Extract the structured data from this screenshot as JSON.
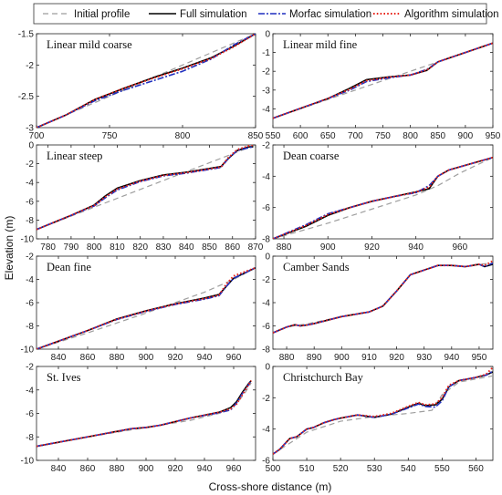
{
  "xlabel": "Cross-shore distance (m)",
  "ylabel": "Elevation (m)",
  "legend": [
    {
      "name": "Initial profile",
      "color": "#9e9e9e",
      "dash": "6,4",
      "width": 1.2
    },
    {
      "name": "Full simulation",
      "color": "#000000",
      "dash": "",
      "width": 1.6
    },
    {
      "name": "Morfac simulation",
      "color": "#1f2fbf",
      "dash": "7,2,2,2",
      "width": 1.6
    },
    {
      "name": "Algorithm simulation",
      "color": "#e8231a",
      "dash": "1.6,2.2",
      "width": 1.9
    }
  ],
  "chart_data": [
    {
      "title": "Linear mild coarse",
      "type": "line",
      "xlim": [
        700,
        850
      ],
      "ylim": [
        -3,
        -1.5
      ],
      "xticks": [
        "700",
        "750",
        "800",
        "850"
      ],
      "yticks": [
        "-3",
        "-2.5",
        "-2",
        "-1.5"
      ],
      "initial": {
        "x": [
          700,
          850
        ],
        "y": [
          -3,
          -1.5
        ]
      },
      "series": [
        {
          "x": [
            700,
            720,
            740,
            760,
            780,
            800,
            820,
            835,
            850
          ],
          "y": [
            -3.0,
            -2.8,
            -2.55,
            -2.37,
            -2.2,
            -2.05,
            -1.88,
            -1.7,
            -1.5
          ]
        },
        {
          "x": [
            700,
            720,
            740,
            760,
            780,
            800,
            820,
            835,
            850
          ],
          "y": [
            -3.0,
            -2.8,
            -2.57,
            -2.4,
            -2.25,
            -2.1,
            -1.9,
            -1.68,
            -1.5
          ]
        },
        {
          "x": [
            700,
            720,
            740,
            760,
            780,
            800,
            820,
            835,
            850
          ],
          "y": [
            -3.0,
            -2.8,
            -2.55,
            -2.37,
            -2.21,
            -2.06,
            -1.89,
            -1.71,
            -1.5
          ]
        }
      ]
    },
    {
      "title": "Linear mild fine",
      "type": "line",
      "xlim": [
        550,
        950
      ],
      "ylim": [
        -5,
        0
      ],
      "xticks": [
        "550",
        "600",
        "650",
        "700",
        "750",
        "800",
        "850",
        "900",
        "950"
      ],
      "yticks": [
        "-4",
        "-3",
        "-2",
        "-1",
        "0"
      ],
      "initial": {
        "x": [
          550,
          950
        ],
        "y": [
          -4.5,
          -0.5
        ]
      },
      "series": [
        {
          "x": [
            550,
            650,
            690,
            720,
            760,
            800,
            830,
            850,
            900,
            950
          ],
          "y": [
            -4.5,
            -3.45,
            -2.9,
            -2.45,
            -2.3,
            -2.2,
            -1.95,
            -1.5,
            -1.0,
            -0.5
          ]
        },
        {
          "x": [
            550,
            650,
            690,
            720,
            760,
            800,
            830,
            850,
            900,
            950
          ],
          "y": [
            -4.5,
            -3.45,
            -3.0,
            -2.55,
            -2.35,
            -2.2,
            -1.9,
            -1.5,
            -1.0,
            -0.5
          ]
        },
        {
          "x": [
            550,
            650,
            690,
            720,
            760,
            800,
            830,
            850,
            900,
            950
          ],
          "y": [
            -4.5,
            -3.45,
            -2.95,
            -2.5,
            -2.32,
            -2.2,
            -1.93,
            -1.5,
            -1.0,
            -0.5
          ]
        }
      ]
    },
    {
      "title": "Linear steep",
      "type": "line",
      "xlim": [
        775,
        870
      ],
      "ylim": [
        -10,
        0
      ],
      "xticks": [
        "780",
        "790",
        "800",
        "810",
        "820",
        "830",
        "840",
        "850",
        "860",
        "870"
      ],
      "yticks": [
        "-10",
        "-8",
        "-6",
        "-4",
        "-2",
        "0"
      ],
      "initial": {
        "x": [
          775,
          870
        ],
        "y": [
          -9.0,
          0.0
        ]
      },
      "series": [
        {
          "x": [
            775,
            790,
            800,
            805,
            810,
            820,
            830,
            840,
            850,
            855,
            858,
            862,
            867,
            869
          ],
          "y": [
            -9.0,
            -7.5,
            -6.4,
            -5.4,
            -4.6,
            -3.8,
            -3.2,
            -2.9,
            -2.5,
            -2.3,
            -1.5,
            -0.6,
            -0.2,
            -0.2
          ]
        },
        {
          "x": [
            775,
            790,
            800,
            805,
            810,
            820,
            830,
            840,
            850,
            855,
            858,
            862,
            867,
            869
          ],
          "y": [
            -9.0,
            -7.5,
            -6.5,
            -5.6,
            -4.8,
            -3.9,
            -3.3,
            -3.0,
            -2.6,
            -2.4,
            -1.5,
            -0.6,
            -0.3,
            -0.2
          ]
        },
        {
          "x": [
            775,
            790,
            800,
            805,
            810,
            820,
            830,
            840,
            850,
            855,
            858,
            862,
            867,
            869
          ],
          "y": [
            -9.0,
            -7.5,
            -6.45,
            -5.5,
            -4.7,
            -3.85,
            -3.25,
            -2.95,
            -2.55,
            -2.35,
            -1.4,
            -0.5,
            -0.1,
            0.0
          ]
        }
      ]
    },
    {
      "title": "Dean coarse",
      "type": "line",
      "xlim": [
        875,
        975
      ],
      "ylim": [
        -8,
        -2
      ],
      "xticks": [
        "880",
        "900",
        "920",
        "940",
        "960"
      ],
      "yticks": [
        "-8",
        "-6",
        "-4",
        "-2"
      ],
      "initial": {
        "x": [
          875,
          900,
          920,
          940,
          950,
          960,
          975
        ],
        "y": [
          -8.0,
          -7.0,
          -6.1,
          -5.2,
          -4.6,
          -3.8,
          -2.8
        ]
      },
      "series": [
        {
          "x": [
            875,
            890,
            900,
            910,
            920,
            930,
            940,
            946,
            950,
            955,
            965,
            975
          ],
          "y": [
            -8.0,
            -7.2,
            -6.5,
            -6.0,
            -5.6,
            -5.3,
            -5.0,
            -4.8,
            -4.0,
            -3.6,
            -3.2,
            -2.8
          ]
        },
        {
          "x": [
            875,
            890,
            900,
            910,
            920,
            930,
            940,
            946,
            950,
            955,
            965,
            975
          ],
          "y": [
            -8.0,
            -7.1,
            -6.4,
            -6.0,
            -5.6,
            -5.3,
            -5.05,
            -4.6,
            -4.0,
            -3.6,
            -3.2,
            -2.8
          ]
        },
        {
          "x": [
            875,
            890,
            900,
            910,
            920,
            930,
            940,
            946,
            950,
            955,
            965,
            975
          ],
          "y": [
            -8.0,
            -7.15,
            -6.45,
            -6.0,
            -5.6,
            -5.3,
            -5.02,
            -4.7,
            -4.0,
            -3.6,
            -3.2,
            -2.8
          ]
        }
      ]
    },
    {
      "title": "Dean fine",
      "type": "line",
      "xlim": [
        825,
        975
      ],
      "ylim": [
        -10,
        -2
      ],
      "xticks": [
        "840",
        "860",
        "880",
        "900",
        "920",
        "940",
        "960"
      ],
      "yticks": [
        "-10",
        "-8",
        "-6",
        "-4",
        "-2"
      ],
      "initial": {
        "x": [
          825,
          860,
          900,
          940,
          960,
          975
        ],
        "y": [
          -10.0,
          -8.6,
          -6.9,
          -5.1,
          -4.0,
          -3.0
        ]
      },
      "series": [
        {
          "x": [
            825,
            860,
            880,
            900,
            920,
            940,
            950,
            955,
            960,
            975
          ],
          "y": [
            -10.0,
            -8.4,
            -7.4,
            -6.7,
            -6.1,
            -5.6,
            -5.3,
            -4.6,
            -3.9,
            -3.0
          ]
        },
        {
          "x": [
            825,
            860,
            880,
            900,
            920,
            940,
            950,
            955,
            960,
            975
          ],
          "y": [
            -10.0,
            -8.4,
            -7.45,
            -6.75,
            -6.15,
            -5.7,
            -5.4,
            -4.6,
            -3.9,
            -3.0
          ]
        },
        {
          "x": [
            825,
            860,
            880,
            900,
            920,
            940,
            950,
            955,
            960,
            975
          ],
          "y": [
            -10.0,
            -8.4,
            -7.42,
            -6.72,
            -6.12,
            -5.65,
            -5.35,
            -4.4,
            -3.7,
            -3.0
          ]
        }
      ]
    },
    {
      "title": "Camber Sands",
      "type": "line",
      "xlim": [
        875,
        955
      ],
      "ylim": [
        -8,
        0
      ],
      "xticks": [
        "880",
        "890",
        "900",
        "910",
        "920",
        "930",
        "940",
        "950"
      ],
      "yticks": [
        "-8",
        "-6",
        "-4",
        "-2",
        "0"
      ],
      "initial": {
        "x": [
          875,
          880,
          888,
          900,
          910,
          915,
          920,
          925,
          930,
          935,
          940,
          945,
          950,
          955
        ],
        "y": [
          -6.6,
          -6.1,
          -5.8,
          -5.2,
          -4.8,
          -4.3,
          -3.0,
          -1.6,
          -1.2,
          -0.8,
          -0.8,
          -0.9,
          -0.7,
          -0.6
        ]
      },
      "series": [
        {
          "x": [
            875,
            880,
            883,
            885,
            888,
            890,
            900,
            910,
            915,
            920,
            925,
            930,
            935,
            940,
            945,
            950,
            952,
            955
          ],
          "y": [
            -6.6,
            -6.1,
            -5.9,
            -6.0,
            -5.9,
            -5.8,
            -5.2,
            -4.8,
            -4.3,
            -3.0,
            -1.6,
            -1.2,
            -0.8,
            -0.8,
            -0.9,
            -0.7,
            -0.9,
            -0.7
          ]
        },
        {
          "x": [
            875,
            880,
            883,
            885,
            888,
            890,
            900,
            910,
            915,
            920,
            925,
            930,
            935,
            940,
            945,
            950,
            952,
            955
          ],
          "y": [
            -6.6,
            -6.1,
            -5.9,
            -6.0,
            -5.9,
            -5.8,
            -5.2,
            -4.8,
            -4.3,
            -3.0,
            -1.6,
            -1.2,
            -0.8,
            -0.8,
            -0.9,
            -0.7,
            -0.9,
            -0.6
          ]
        },
        {
          "x": [
            875,
            880,
            883,
            885,
            888,
            890,
            900,
            910,
            915,
            920,
            925,
            930,
            935,
            940,
            945,
            950,
            952,
            955
          ],
          "y": [
            -6.6,
            -6.1,
            -5.9,
            -6.0,
            -5.9,
            -5.8,
            -5.2,
            -4.8,
            -4.3,
            -3.0,
            -1.6,
            -1.2,
            -0.8,
            -0.8,
            -0.9,
            -0.7,
            -0.8,
            -0.4
          ]
        }
      ]
    },
    {
      "title": "St. Ives",
      "type": "line",
      "xlim": [
        825,
        975
      ],
      "ylim": [
        -10,
        -2
      ],
      "xticks": [
        "840",
        "860",
        "880",
        "900",
        "920",
        "940",
        "960"
      ],
      "yticks": [
        "-10",
        "-8",
        "-6",
        "-4",
        "-2"
      ],
      "initial": {
        "x": [
          825,
          860,
          900,
          930,
          950,
          962,
          968,
          972
        ],
        "y": [
          -8.8,
          -8.0,
          -7.2,
          -6.6,
          -6.0,
          -5.2,
          -4.2,
          -3.4
        ]
      },
      "series": [
        {
          "x": [
            825,
            860,
            890,
            900,
            910,
            930,
            950,
            958,
            962,
            966,
            970,
            972
          ],
          "y": [
            -8.8,
            -8.0,
            -7.3,
            -7.2,
            -7.0,
            -6.4,
            -5.9,
            -5.5,
            -5.0,
            -4.2,
            -3.5,
            -3.2
          ]
        },
        {
          "x": [
            825,
            860,
            890,
            900,
            910,
            930,
            950,
            958,
            962,
            966,
            970,
            972
          ],
          "y": [
            -8.8,
            -8.0,
            -7.3,
            -7.2,
            -7.0,
            -6.4,
            -5.95,
            -5.7,
            -5.1,
            -4.3,
            -3.6,
            -3.2
          ]
        },
        {
          "x": [
            825,
            860,
            890,
            900,
            910,
            930,
            950,
            958,
            962,
            966,
            970,
            972
          ],
          "y": [
            -8.8,
            -8.0,
            -7.3,
            -7.2,
            -7.0,
            -6.4,
            -5.9,
            -5.6,
            -5.2,
            -4.4,
            -3.6,
            -3.2
          ]
        }
      ]
    },
    {
      "title": "Christchurch Bay",
      "type": "line",
      "xlim": [
        500,
        565
      ],
      "ylim": [
        -6,
        0
      ],
      "xticks": [
        "500",
        "510",
        "520",
        "530",
        "540",
        "550",
        "560"
      ],
      "yticks": [
        "-6",
        "-4",
        "-2",
        "0"
      ],
      "initial": {
        "x": [
          500,
          510,
          520,
          530,
          540,
          547,
          550,
          555,
          560,
          565
        ],
        "y": [
          -5.6,
          -4.2,
          -3.5,
          -3.2,
          -3.0,
          -2.8,
          -1.8,
          -1.0,
          -0.8,
          -0.6
        ]
      },
      "series": [
        {
          "x": [
            500,
            502,
            505,
            507,
            510,
            512,
            515,
            518,
            520,
            525,
            530,
            535,
            540,
            543,
            545,
            548,
            550,
            552,
            555,
            560,
            563,
            565
          ],
          "y": [
            -5.6,
            -5.3,
            -4.6,
            -4.5,
            -4.0,
            -3.9,
            -3.6,
            -3.4,
            -3.3,
            -3.1,
            -3.25,
            -3.05,
            -2.6,
            -2.35,
            -2.5,
            -2.45,
            -2.1,
            -1.3,
            -0.9,
            -0.7,
            -0.55,
            -0.35
          ]
        },
        {
          "x": [
            500,
            502,
            505,
            507,
            510,
            512,
            515,
            518,
            520,
            525,
            530,
            535,
            540,
            543,
            545,
            548,
            550,
            552,
            555,
            560,
            563,
            565
          ],
          "y": [
            -5.6,
            -5.3,
            -4.6,
            -4.5,
            -4.0,
            -3.9,
            -3.6,
            -3.4,
            -3.3,
            -3.1,
            -3.25,
            -3.05,
            -2.65,
            -2.4,
            -2.55,
            -2.6,
            -2.2,
            -1.3,
            -0.9,
            -0.7,
            -0.55,
            -0.3
          ]
        },
        {
          "x": [
            500,
            502,
            505,
            507,
            510,
            512,
            515,
            518,
            520,
            525,
            530,
            535,
            540,
            543,
            545,
            548,
            550,
            552,
            555,
            560,
            563,
            565
          ],
          "y": [
            -5.6,
            -5.3,
            -4.6,
            -4.5,
            -4.0,
            -3.9,
            -3.6,
            -3.4,
            -3.3,
            -3.1,
            -3.2,
            -3.0,
            -2.55,
            -2.3,
            -2.45,
            -2.4,
            -2.0,
            -1.2,
            -0.9,
            -0.7,
            -0.5,
            -0.05
          ]
        }
      ]
    }
  ]
}
